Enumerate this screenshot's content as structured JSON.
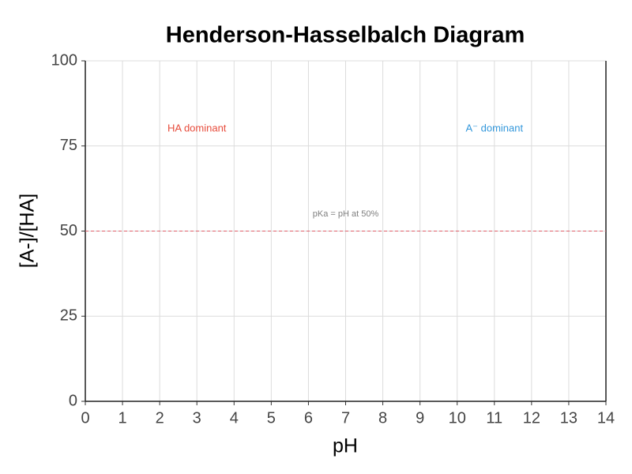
{
  "chart_data": {
    "type": "line",
    "title": "Henderson-Hasselbalch Diagram",
    "x_label": "pH",
    "y_label": "[A-]/[HA]",
    "series": [],
    "xlim": [
      0,
      14
    ],
    "xticks": [
      0,
      1,
      2,
      3,
      4,
      5,
      6,
      7,
      8,
      9,
      10,
      11,
      12,
      13,
      14
    ],
    "ylim": [
      0,
      100
    ],
    "yticks": [
      0,
      25,
      50,
      75,
      100
    ],
    "grid": true,
    "hlines": [
      {
        "y": 50,
        "color": "#e0606a"
      }
    ],
    "annotations": [
      {
        "text": "HA dominant",
        "x": 3,
        "y": 80,
        "color": "#e74c3c"
      },
      {
        "text": "A⁻ dominant",
        "x": 11,
        "y": 80,
        "color": "#3498db"
      },
      {
        "text": "pKa = pH at 50%",
        "x": 7,
        "y": 55,
        "color": "#7f7f7f"
      }
    ]
  }
}
